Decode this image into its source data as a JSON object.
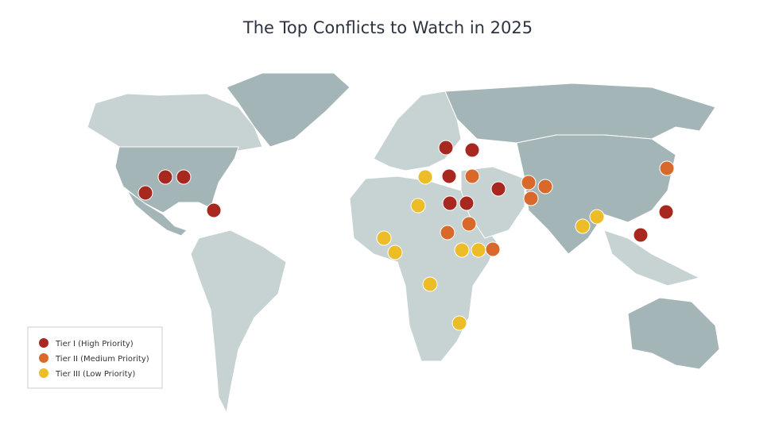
{
  "title": "The Top Conflicts to Watch in 2025",
  "legend": [
    {
      "label": "Tier I (High Priority)",
      "color": "#a8281f"
    },
    {
      "label": "Tier II (Medium Priority)",
      "color": "#d8692a"
    },
    {
      "label": "Tier III (Low Priority)",
      "color": "#ecbd26"
    }
  ]
}
